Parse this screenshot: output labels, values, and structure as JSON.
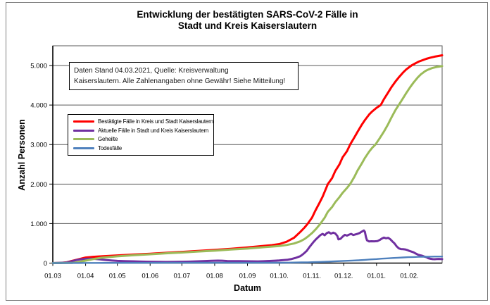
{
  "chart_data": {
    "type": "line",
    "title": "Entwicklung der bestätigten SARS-CoV-2 Fälle in\nStadt und Kreis Kaiserslautern",
    "xlabel": "Datum",
    "ylabel": "Anzahl Personen",
    "annotation": "Daten Stand 04.03.2021, Quelle: Kreisverwaltung\nKaiserslautern. Alle Zahlenangaben ohne Gewähr! Siehe Mitteilung!",
    "grid": true,
    "legend_position": "upper-left-inside",
    "ylim": [
      0,
      5500
    ],
    "x_range_days": 368,
    "x_start_label": "01.03",
    "y_ticks": [
      {
        "value": 0,
        "label": "0"
      },
      {
        "value": 1000,
        "label": "1.000"
      },
      {
        "value": 2000,
        "label": "2.000"
      },
      {
        "value": 3000,
        "label": "3.000"
      },
      {
        "value": 4000,
        "label": "4.000"
      },
      {
        "value": 5000,
        "label": "5.000"
      }
    ],
    "x_ticks": [
      {
        "day": 0,
        "label": "01.03"
      },
      {
        "day": 31,
        "label": "01.04"
      },
      {
        "day": 61,
        "label": "01.05"
      },
      {
        "day": 92,
        "label": "01.06"
      },
      {
        "day": 122,
        "label": "01.07"
      },
      {
        "day": 153,
        "label": "01.08"
      },
      {
        "day": 184,
        "label": "01.09"
      },
      {
        "day": 214,
        "label": "01.10."
      },
      {
        "day": 245,
        "label": "01.11."
      },
      {
        "day": 275,
        "label": "01.12."
      },
      {
        "day": 306,
        "label": "01.01."
      },
      {
        "day": 337,
        "label": "01.02."
      }
    ],
    "series": [
      {
        "name": "Bestätigte Fälle in Kreis und Stadt Kaiserslautern",
        "color": "#FF0000",
        "width": 3,
        "points": [
          [
            0,
            0
          ],
          [
            8,
            5
          ],
          [
            13,
            20
          ],
          [
            18,
            55
          ],
          [
            24,
            95
          ],
          [
            31,
            140
          ],
          [
            38,
            158
          ],
          [
            46,
            172
          ],
          [
            61,
            195
          ],
          [
            76,
            215
          ],
          [
            92,
            235
          ],
          [
            107,
            260
          ],
          [
            122,
            283
          ],
          [
            137,
            308
          ],
          [
            153,
            333
          ],
          [
            168,
            362
          ],
          [
            184,
            398
          ],
          [
            199,
            435
          ],
          [
            207,
            455
          ],
          [
            214,
            482
          ],
          [
            221,
            540
          ],
          [
            228,
            640
          ],
          [
            234,
            790
          ],
          [
            238,
            900
          ],
          [
            241,
            1000
          ],
          [
            245,
            1150
          ],
          [
            248,
            1320
          ],
          [
            252,
            1520
          ],
          [
            255,
            1680
          ],
          [
            260,
            2000
          ],
          [
            264,
            2150
          ],
          [
            267,
            2330
          ],
          [
            271,
            2500
          ],
          [
            274,
            2680
          ],
          [
            278,
            2830
          ],
          [
            281,
            3000
          ],
          [
            285,
            3180
          ],
          [
            288,
            3320
          ],
          [
            292,
            3500
          ],
          [
            295,
            3620
          ],
          [
            299,
            3760
          ],
          [
            302,
            3840
          ],
          [
            306,
            3930
          ],
          [
            310,
            4000
          ],
          [
            313,
            4150
          ],
          [
            317,
            4320
          ],
          [
            320,
            4450
          ],
          [
            324,
            4600
          ],
          [
            327,
            4700
          ],
          [
            331,
            4820
          ],
          [
            334,
            4900
          ],
          [
            339,
            5000
          ],
          [
            343,
            5060
          ],
          [
            346,
            5100
          ],
          [
            350,
            5140
          ],
          [
            353,
            5170
          ],
          [
            357,
            5200
          ],
          [
            361,
            5225
          ],
          [
            364,
            5240
          ],
          [
            368,
            5260
          ]
        ]
      },
      {
        "name": "Aktuelle Fälle in Stadt und Kreis Kaiserslautern",
        "color": "#7030A0",
        "width": 3,
        "points": [
          [
            0,
            0
          ],
          [
            12,
            12
          ],
          [
            17,
            40
          ],
          [
            22,
            75
          ],
          [
            26,
            95
          ],
          [
            31,
            108
          ],
          [
            36,
            112
          ],
          [
            40,
            105
          ],
          [
            45,
            92
          ],
          [
            50,
            78
          ],
          [
            56,
            65
          ],
          [
            61,
            56
          ],
          [
            68,
            50
          ],
          [
            76,
            45
          ],
          [
            84,
            38
          ],
          [
            92,
            34
          ],
          [
            100,
            30
          ],
          [
            107,
            29
          ],
          [
            115,
            30
          ],
          [
            122,
            33
          ],
          [
            130,
            38
          ],
          [
            137,
            44
          ],
          [
            144,
            52
          ],
          [
            150,
            58
          ],
          [
            156,
            62
          ],
          [
            160,
            60
          ],
          [
            165,
            52
          ],
          [
            170,
            48
          ],
          [
            176,
            50
          ],
          [
            182,
            46
          ],
          [
            188,
            44
          ],
          [
            194,
            42
          ],
          [
            199,
            46
          ],
          [
            205,
            54
          ],
          [
            210,
            60
          ],
          [
            214,
            66
          ],
          [
            218,
            74
          ],
          [
            222,
            85
          ],
          [
            226,
            105
          ],
          [
            230,
            135
          ],
          [
            234,
            175
          ],
          [
            237,
            235
          ],
          [
            240,
            310
          ],
          [
            243,
            420
          ],
          [
            246,
            520
          ],
          [
            249,
            610
          ],
          [
            251,
            660
          ],
          [
            253,
            710
          ],
          [
            255,
            740
          ],
          [
            257,
            705
          ],
          [
            259,
            760
          ],
          [
            261,
            780
          ],
          [
            263,
            745
          ],
          [
            265,
            770
          ],
          [
            267,
            750
          ],
          [
            269,
            685
          ],
          [
            270,
            600
          ],
          [
            272,
            615
          ],
          [
            274,
            670
          ],
          [
            276,
            715
          ],
          [
            278,
            695
          ],
          [
            280,
            720
          ],
          [
            282,
            740
          ],
          [
            284,
            710
          ],
          [
            286,
            725
          ],
          [
            288,
            740
          ],
          [
            290,
            762
          ],
          [
            292,
            795
          ],
          [
            294,
            825
          ],
          [
            295,
            790
          ],
          [
            296,
            660
          ],
          [
            297,
            575
          ],
          [
            299,
            548
          ],
          [
            301,
            552
          ],
          [
            304,
            550
          ],
          [
            307,
            558
          ],
          [
            309,
            585
          ],
          [
            311,
            620
          ],
          [
            313,
            645
          ],
          [
            315,
            628
          ],
          [
            317,
            640
          ],
          [
            319,
            602
          ],
          [
            321,
            548
          ],
          [
            323,
            498
          ],
          [
            325,
            425
          ],
          [
            327,
            372
          ],
          [
            329,
            355
          ],
          [
            331,
            352
          ],
          [
            333,
            345
          ],
          [
            335,
            332
          ],
          [
            337,
            308
          ],
          [
            339,
            290
          ],
          [
            341,
            272
          ],
          [
            343,
            242
          ],
          [
            345,
            215
          ],
          [
            347,
            200
          ],
          [
            349,
            188
          ],
          [
            351,
            165
          ],
          [
            353,
            152
          ],
          [
            355,
            122
          ],
          [
            357,
            108
          ],
          [
            359,
            100
          ],
          [
            361,
            98
          ],
          [
            363,
            102
          ],
          [
            365,
            106
          ],
          [
            368,
            100
          ]
        ]
      },
      {
        "name": "Geheilte",
        "color": "#9BBB59",
        "width": 3,
        "points": [
          [
            0,
            0
          ],
          [
            18,
            3
          ],
          [
            24,
            25
          ],
          [
            31,
            62
          ],
          [
            38,
            100
          ],
          [
            46,
            135
          ],
          [
            61,
            172
          ],
          [
            76,
            198
          ],
          [
            92,
            222
          ],
          [
            107,
            247
          ],
          [
            122,
            268
          ],
          [
            137,
            292
          ],
          [
            153,
            313
          ],
          [
            168,
            342
          ],
          [
            184,
            368
          ],
          [
            199,
            402
          ],
          [
            214,
            432
          ],
          [
            221,
            458
          ],
          [
            228,
            495
          ],
          [
            234,
            550
          ],
          [
            238,
            610
          ],
          [
            241,
            670
          ],
          [
            245,
            760
          ],
          [
            249,
            870
          ],
          [
            253,
            1000
          ],
          [
            257,
            1150
          ],
          [
            260,
            1300
          ],
          [
            264,
            1420
          ],
          [
            267,
            1540
          ],
          [
            271,
            1670
          ],
          [
            274,
            1780
          ],
          [
            278,
            1900
          ],
          [
            281,
            2000
          ],
          [
            285,
            2180
          ],
          [
            288,
            2340
          ],
          [
            292,
            2520
          ],
          [
            295,
            2660
          ],
          [
            299,
            2820
          ],
          [
            302,
            2920
          ],
          [
            305,
            3000
          ],
          [
            309,
            3160
          ],
          [
            313,
            3330
          ],
          [
            317,
            3520
          ],
          [
            320,
            3680
          ],
          [
            324,
            3880
          ],
          [
            327,
            4000
          ],
          [
            331,
            4170
          ],
          [
            334,
            4300
          ],
          [
            338,
            4460
          ],
          [
            341,
            4570
          ],
          [
            345,
            4700
          ],
          [
            348,
            4780
          ],
          [
            352,
            4860
          ],
          [
            355,
            4900
          ],
          [
            359,
            4940
          ],
          [
            363,
            4965
          ],
          [
            368,
            4985
          ]
        ]
      },
      {
        "name": "Todesfälle",
        "color": "#4F81BD",
        "width": 2.4,
        "points": [
          [
            0,
            0
          ],
          [
            15,
            1
          ],
          [
            24,
            2
          ],
          [
            31,
            3
          ],
          [
            40,
            4
          ],
          [
            53,
            5
          ],
          [
            70,
            6
          ],
          [
            92,
            6
          ],
          [
            115,
            7
          ],
          [
            140,
            7
          ],
          [
            165,
            8
          ],
          [
            190,
            8
          ],
          [
            210,
            9
          ],
          [
            220,
            11
          ],
          [
            228,
            14
          ],
          [
            235,
            17
          ],
          [
            241,
            20
          ],
          [
            247,
            25
          ],
          [
            253,
            30
          ],
          [
            259,
            36
          ],
          [
            265,
            43
          ],
          [
            271,
            50
          ],
          [
            277,
            57
          ],
          [
            283,
            64
          ],
          [
            289,
            72
          ],
          [
            295,
            82
          ],
          [
            300,
            92
          ],
          [
            306,
            102
          ],
          [
            311,
            112
          ],
          [
            316,
            120
          ],
          [
            321,
            128
          ],
          [
            326,
            136
          ],
          [
            331,
            143
          ],
          [
            336,
            149
          ],
          [
            341,
            154
          ],
          [
            346,
            158
          ],
          [
            351,
            161
          ],
          [
            356,
            163
          ],
          [
            361,
            165
          ],
          [
            368,
            166
          ]
        ]
      }
    ],
    "style": {
      "gridline_color": "#595959",
      "axis_color": "#000000",
      "plot_border_color": "#595959",
      "figure_border_color": "#808080"
    }
  }
}
